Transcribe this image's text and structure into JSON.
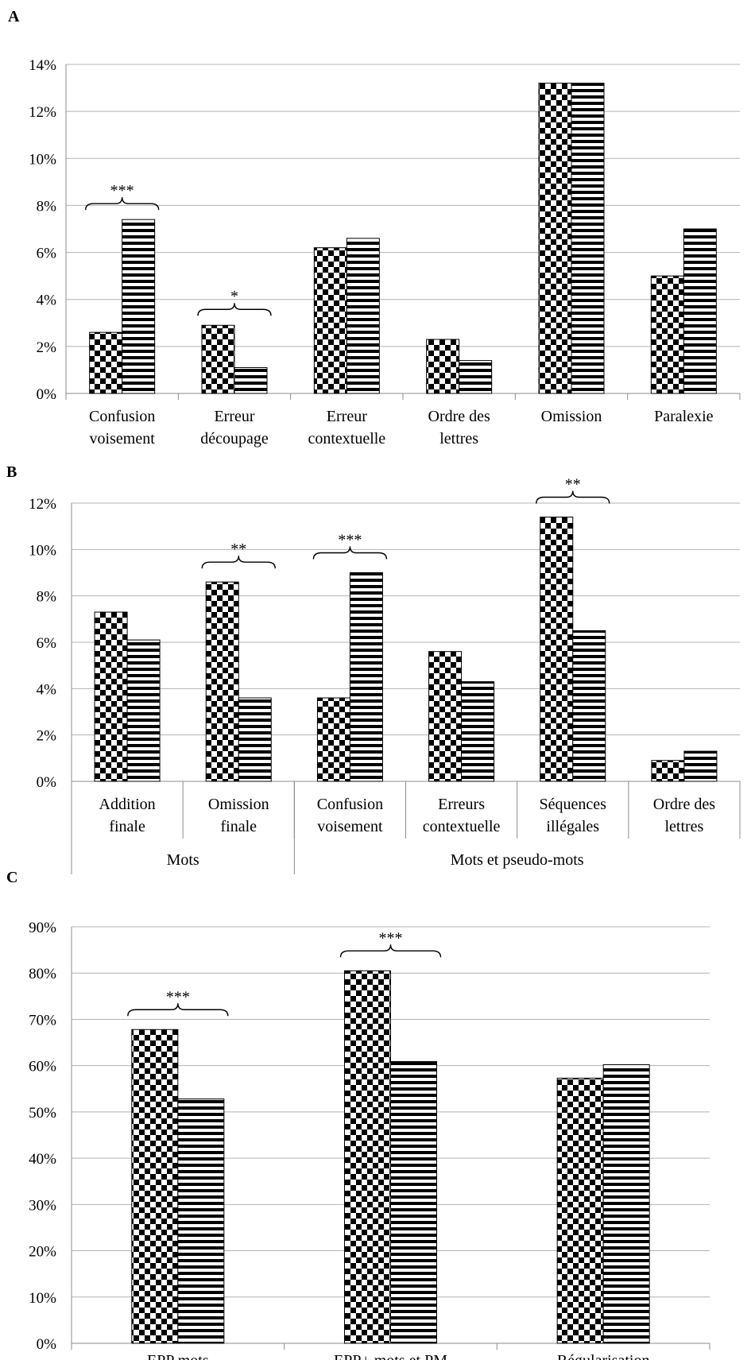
{
  "chart_data": [
    {
      "panel": "A",
      "type": "bar",
      "ylim": [
        0,
        14
      ],
      "yticks": [
        "0%",
        "2%",
        "4%",
        "6%",
        "8%",
        "10%",
        "12%",
        "14%"
      ],
      "categories": [
        [
          "Confusion",
          "voisement"
        ],
        [
          "Erreur",
          "découpage"
        ],
        [
          "Erreur",
          "contextuelle"
        ],
        [
          "Ordre des",
          "lettres"
        ],
        [
          "Omission"
        ],
        [
          "Paralexie"
        ]
      ],
      "series": [
        {
          "pattern": "checker",
          "values": [
            2.6,
            2.9,
            6.2,
            2.3,
            13.2,
            5.0
          ]
        },
        {
          "pattern": "stripes",
          "values": [
            7.4,
            1.1,
            6.6,
            1.4,
            13.2,
            7.0
          ]
        }
      ],
      "significance": [
        {
          "category": 0,
          "label": "***"
        },
        {
          "category": 1,
          "label": "*"
        }
      ],
      "groups": []
    },
    {
      "panel": "B",
      "type": "bar",
      "ylim": [
        0,
        12
      ],
      "yticks": [
        "0%",
        "2%",
        "4%",
        "6%",
        "8%",
        "10%",
        "12%"
      ],
      "categories": [
        [
          "Addition",
          "finale"
        ],
        [
          "Omission",
          "finale"
        ],
        [
          "Confusion",
          "voisement"
        ],
        [
          "Erreurs",
          "contextuelle"
        ],
        [
          "Séquences",
          "illégales"
        ],
        [
          "Ordre des",
          "lettres"
        ]
      ],
      "series": [
        {
          "pattern": "checker",
          "values": [
            7.3,
            8.6,
            3.6,
            5.6,
            11.4,
            0.9
          ]
        },
        {
          "pattern": "stripes",
          "values": [
            6.1,
            3.6,
            9.0,
            4.3,
            6.5,
            1.3
          ]
        }
      ],
      "significance": [
        {
          "category": 1,
          "label": "**"
        },
        {
          "category": 2,
          "label": "***"
        },
        {
          "category": 4,
          "label": "**"
        }
      ],
      "groups": [
        {
          "label": "Mots",
          "from": 0,
          "to": 1
        },
        {
          "label": "Mots et pseudo-mots",
          "from": 2,
          "to": 5
        }
      ]
    },
    {
      "panel": "C",
      "type": "bar",
      "ylim": [
        0,
        90
      ],
      "yticks": [
        "0%",
        "10%",
        "20%",
        "30%",
        "40%",
        "50%",
        "60%",
        "70%",
        "80%",
        "90%"
      ],
      "categories": [
        [
          "EPP mots"
        ],
        [
          "EPP+ mots et PM"
        ],
        [
          "Régularisation"
        ]
      ],
      "series": [
        {
          "pattern": "checker",
          "values": [
            67.8,
            80.5,
            57.3
          ]
        },
        {
          "pattern": "stripes",
          "values": [
            52.8,
            60.9,
            60.2
          ]
        }
      ],
      "significance": [
        {
          "category": 0,
          "label": "***"
        },
        {
          "category": 1,
          "label": "***"
        }
      ],
      "groups": []
    }
  ]
}
